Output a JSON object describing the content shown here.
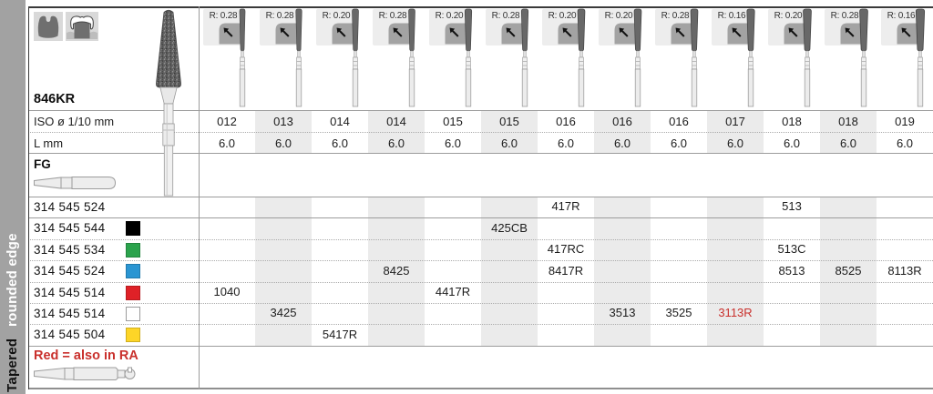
{
  "sidebar": {
    "category": "Tapered",
    "subcategory": "rounded edge"
  },
  "series": "846KR",
  "labels": {
    "iso": "ISO ø 1/10 mm",
    "l": "L mm",
    "shank": "FG"
  },
  "header": {
    "columns": [
      {
        "radius_label": "R: 0.28",
        "iso": "012",
        "l": "6.0"
      },
      {
        "radius_label": "R: 0.28",
        "iso": "013",
        "l": "6.0"
      },
      {
        "radius_label": "R: 0.20",
        "iso": "014",
        "l": "6.0"
      },
      {
        "radius_label": "R: 0.28",
        "iso": "014",
        "l": "6.0"
      },
      {
        "radius_label": "R: 0.20",
        "iso": "015",
        "l": "6.0"
      },
      {
        "radius_label": "R: 0.28",
        "iso": "015",
        "l": "6.0"
      },
      {
        "radius_label": "R: 0.20",
        "iso": "016",
        "l": "6.0"
      },
      {
        "radius_label": "R: 0.20",
        "iso": "016",
        "l": "6.0"
      },
      {
        "radius_label": "R: 0.28",
        "iso": "016",
        "l": "6.0"
      },
      {
        "radius_label": "R: 0.16",
        "iso": "017",
        "l": "6.0"
      },
      {
        "radius_label": "R: 0.20",
        "iso": "018",
        "l": "6.0"
      },
      {
        "radius_label": "R: 0.28",
        "iso": "018",
        "l": "6.0"
      },
      {
        "radius_label": "R: 0.16",
        "iso": "019",
        "l": "6.0"
      }
    ]
  },
  "products": [
    {
      "order_no": "314 545 524",
      "chip": null,
      "cells": [
        {
          "col": 7,
          "text": "417R"
        },
        {
          "col": 11,
          "text": "513"
        }
      ]
    },
    {
      "order_no": "314 545 544",
      "chip": "#000000",
      "cells": [
        {
          "col": 6,
          "text": "425CB"
        }
      ]
    },
    {
      "order_no": "314 545 534",
      "chip": "#2ba34c",
      "cells": [
        {
          "col": 7,
          "text": "417RC"
        },
        {
          "col": 11,
          "text": "513C"
        }
      ]
    },
    {
      "order_no": "314 545 524",
      "chip": "#2a95d2",
      "cells": [
        {
          "col": 4,
          "text": "8425"
        },
        {
          "col": 7,
          "text": "8417R"
        },
        {
          "col": 11,
          "text": "8513"
        },
        {
          "col": 12,
          "text": "8525"
        },
        {
          "col": 13,
          "text": "8113R"
        }
      ]
    },
    {
      "order_no": "314 545 514",
      "chip": "#df2127",
      "cells": [
        {
          "col": 1,
          "text": "1040"
        },
        {
          "col": 5,
          "text": "4417R"
        }
      ]
    },
    {
      "order_no": "314 545 514",
      "chip": "#ffffff",
      "cells": [
        {
          "col": 2,
          "text": "3425"
        },
        {
          "col": 8,
          "text": "3513"
        },
        {
          "col": 9,
          "text": "3525"
        },
        {
          "col": 10,
          "text": "3113R",
          "red": true
        }
      ]
    },
    {
      "order_no": "314 545 504",
      "chip": "#fdd527",
      "cells": [
        {
          "col": 3,
          "text": "5417R"
        }
      ]
    }
  ],
  "footer": {
    "note": "Red = also in RA"
  },
  "colors": {
    "accent_red": "#c9302c",
    "column_shade": "#ebebeb",
    "sidebar_gray": "#a2a2a2"
  }
}
